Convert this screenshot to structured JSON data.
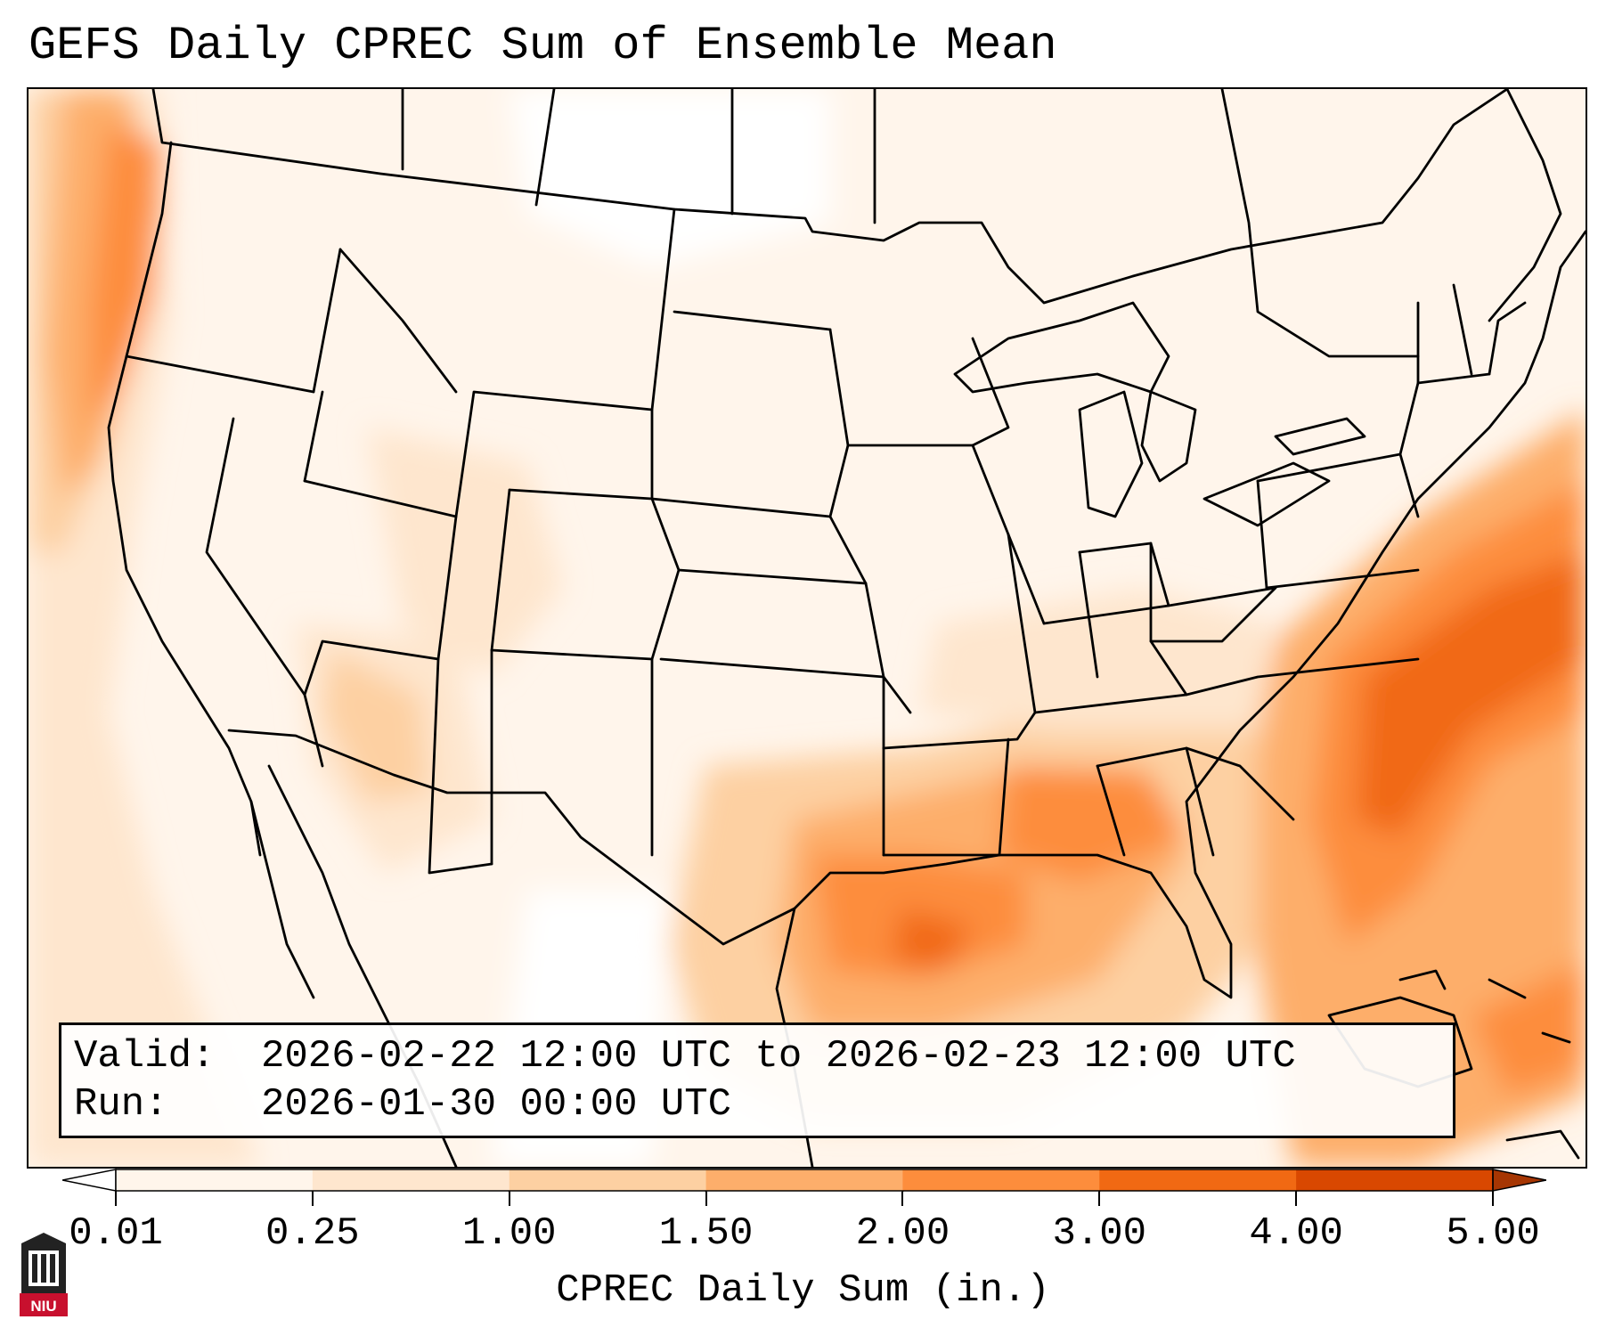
{
  "title": "GEFS Daily CPREC Sum of Ensemble Mean",
  "info": {
    "valid_label": "Valid:",
    "valid_value": "2026-02-22 12:00 UTC to 2026-02-23 12:00 UTC",
    "run_label": "Run:",
    "run_value": "2026-01-30 00:00 UTC"
  },
  "colorbar": {
    "label": "CPREC Daily Sum (in.)",
    "ticks": [
      "0.01",
      "0.25",
      "1.00",
      "1.50",
      "2.00",
      "3.00",
      "4.00",
      "5.00"
    ],
    "colors": [
      "#fff5eb",
      "#fee6ce",
      "#fdd0a2",
      "#fdae6b",
      "#fd8d3c",
      "#f16913",
      "#d94801",
      "#a63603"
    ],
    "under_color": "#ffffff",
    "over_color": "#a63603",
    "extend": "both"
  },
  "logo": {
    "text": "NIU",
    "color": "#c8102e"
  },
  "colors": {
    "map_border": "#000000",
    "state_lines": "#000000",
    "background": "#ffffff"
  }
}
